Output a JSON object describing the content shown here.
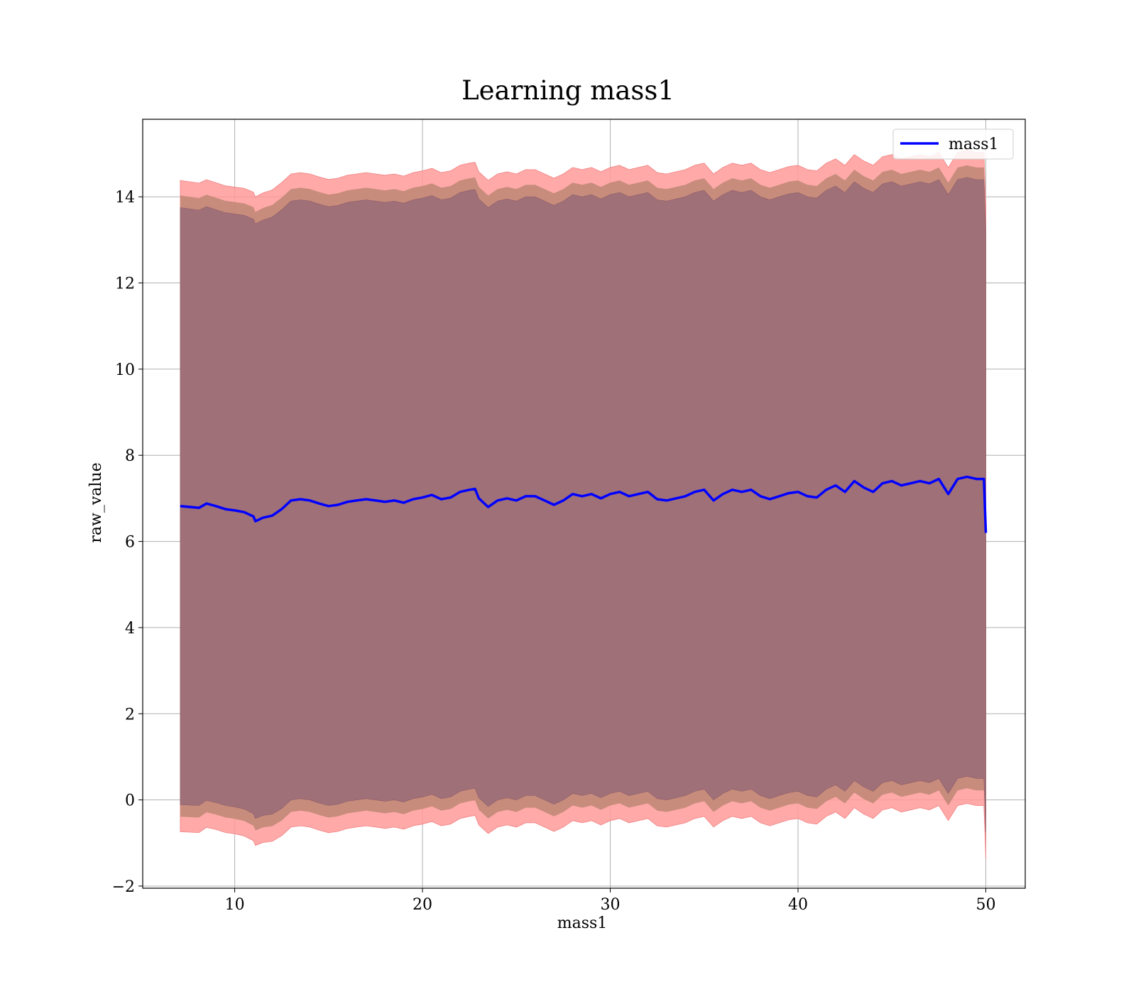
{
  "chart_data": {
    "type": "line",
    "title": "Learning mass1",
    "xlabel": "mass1",
    "ylabel": "raw_value",
    "xlim": [
      5.1,
      52.1
    ],
    "ylim": [
      -2.05,
      15.8
    ],
    "xticks": [
      10,
      20,
      30,
      40,
      50
    ],
    "yticks": [
      -2,
      0,
      2,
      4,
      6,
      8,
      10,
      12,
      14
    ],
    "xtick_labels": [
      "10",
      "20",
      "30",
      "40",
      "50"
    ],
    "ytick_labels": [
      "−2",
      "0",
      "2",
      "4",
      "6",
      "8",
      "10",
      "12",
      "14"
    ],
    "grid": true,
    "legend": {
      "placement": "top-right",
      "entries": [
        "mass1"
      ]
    },
    "colors": {
      "line": "#0000ff",
      "band_outer": "#ff9a9a",
      "band_middle": "#c48a78",
      "band_inner": "#a07078",
      "grid": "#b0b0b0"
    },
    "series": [
      {
        "name": "mass1",
        "x": [
          7.1,
          8.1,
          8.5,
          9.0,
          9.5,
          10.0,
          10.5,
          11.0,
          11.1,
          11.5,
          12.0,
          12.5,
          13.0,
          13.5,
          14.0,
          14.5,
          15.0,
          15.5,
          16.0,
          16.5,
          17.0,
          17.5,
          18.0,
          18.5,
          19.0,
          19.5,
          20.0,
          20.5,
          21.0,
          21.5,
          22.0,
          22.5,
          22.8,
          23.0,
          23.5,
          24.0,
          24.5,
          25.0,
          25.5,
          26.0,
          26.5,
          27.0,
          27.5,
          28.0,
          28.5,
          29.0,
          29.5,
          30.0,
          30.5,
          31.0,
          31.5,
          32.0,
          32.5,
          33.0,
          33.5,
          34.0,
          34.5,
          35.0,
          35.5,
          36.0,
          36.5,
          37.0,
          37.5,
          38.0,
          38.5,
          39.0,
          39.5,
          40.0,
          40.5,
          41.0,
          41.5,
          42.0,
          42.5,
          43.0,
          43.5,
          44.0,
          44.5,
          45.0,
          45.5,
          46.0,
          46.5,
          47.0,
          47.5,
          48.0,
          48.5,
          49.0,
          49.5,
          49.9,
          50.0
        ],
        "values": [
          6.82,
          6.78,
          6.88,
          6.82,
          6.75,
          6.72,
          6.68,
          6.58,
          6.47,
          6.55,
          6.6,
          6.75,
          6.95,
          6.98,
          6.95,
          6.88,
          6.82,
          6.85,
          6.92,
          6.95,
          6.98,
          6.95,
          6.92,
          6.95,
          6.9,
          6.98,
          7.02,
          7.08,
          6.98,
          7.02,
          7.15,
          7.2,
          7.22,
          7.0,
          6.8,
          6.95,
          7.0,
          6.95,
          7.05,
          7.05,
          6.95,
          6.85,
          6.95,
          7.1,
          7.05,
          7.1,
          7.0,
          7.1,
          7.15,
          7.05,
          7.1,
          7.15,
          6.98,
          6.95,
          7.0,
          7.05,
          7.15,
          7.2,
          6.95,
          7.1,
          7.2,
          7.15,
          7.2,
          7.05,
          6.98,
          7.05,
          7.12,
          7.15,
          7.05,
          7.02,
          7.2,
          7.3,
          7.15,
          7.4,
          7.25,
          7.15,
          7.35,
          7.4,
          7.3,
          7.35,
          7.4,
          7.35,
          7.45,
          7.1,
          7.45,
          7.5,
          7.45,
          7.45,
          6.2
        ],
        "std": [
          7.0,
          6.98,
          6.96,
          6.95,
          6.95,
          6.95,
          6.96,
          6.97,
          6.97,
          6.98,
          7.0,
          7.02,
          7.02,
          7.02,
          7.02,
          7.02,
          7.02,
          7.02,
          7.02,
          7.02,
          7.02,
          7.02,
          7.02,
          7.02,
          7.02,
          7.02,
          7.02,
          7.02,
          7.02,
          7.02,
          7.02,
          7.02,
          7.02,
          7.02,
          7.02,
          7.02,
          7.02,
          7.02,
          7.02,
          7.02,
          7.02,
          7.02,
          7.02,
          7.02,
          7.02,
          7.02,
          7.02,
          7.02,
          7.02,
          7.02,
          7.02,
          7.02,
          7.02,
          7.02,
          7.02,
          7.02,
          7.02,
          7.02,
          7.02,
          7.02,
          7.02,
          7.02,
          7.02,
          7.02,
          7.02,
          7.02,
          7.02,
          7.02,
          7.02,
          7.02,
          7.02,
          7.02,
          7.02,
          7.02,
          7.02,
          7.02,
          7.02,
          7.02,
          7.02,
          7.02,
          7.02,
          7.02,
          7.02,
          7.02,
          7.02,
          7.02,
          7.02,
          7.02,
          7.02
        ]
      }
    ]
  }
}
